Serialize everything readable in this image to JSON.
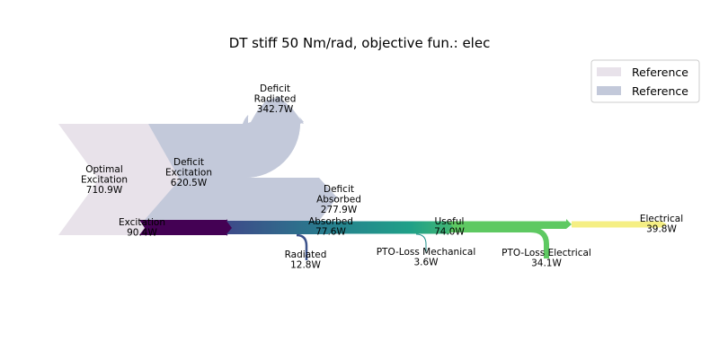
{
  "chart_data": {
    "type": "sankey",
    "title": "DT stiff 50 Nm/rad, objective fun.: elec",
    "legend": {
      "placement": "top-right",
      "entries": [
        {
          "label": "Reference",
          "color": "#e8e2ea"
        },
        {
          "label": "Reference",
          "color": "#c3c9da"
        }
      ]
    },
    "reference_flows": [
      {
        "label": "Optimal\nExcitation\n710.9W",
        "value": 710.9,
        "color": "#e8e2ea"
      },
      {
        "label": "Deficit\nExcitation\n620.5W",
        "value": 620.5,
        "color": "#c3c9da"
      },
      {
        "label": "Deficit\nRadiated\n342.7W",
        "value": 342.7,
        "color": "#c3c9da"
      },
      {
        "label": "Deficit\nAbsorbed\n277.9W",
        "value": 277.9,
        "color": "#c3c9da"
      }
    ],
    "main_flows": [
      {
        "label": "Excitation\n90.4W",
        "value": 90.4,
        "color": "#440154"
      },
      {
        "label": "Absorbed\n77.6W",
        "value": 77.6,
        "color": "#3b528b"
      },
      {
        "label": "Useful\n74.0W",
        "value": 74.0,
        "color": "#21918c"
      },
      {
        "label": "Electrical\n39.8W",
        "value": 39.8,
        "color": "#fde725"
      }
    ],
    "losses": [
      {
        "label": "Radiated\n12.8W",
        "value": 12.8,
        "color": "#3b528b"
      },
      {
        "label": "PTO-Loss Mechanical\n3.6W",
        "value": 3.6,
        "color": "#21918c"
      },
      {
        "label": "PTO-Loss Electrical\n34.1W",
        "value": 34.1,
        "color": "#5ec962"
      }
    ]
  }
}
